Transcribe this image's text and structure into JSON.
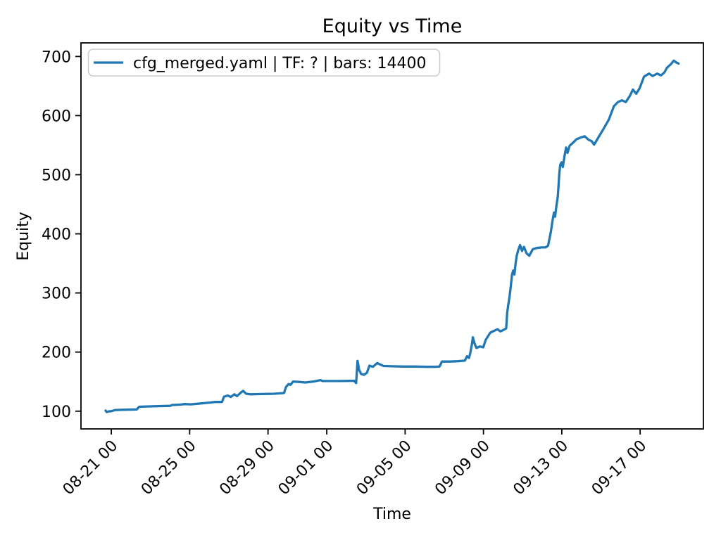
{
  "colors": {
    "line": "#1f77b4",
    "legend_border": "#cccccc",
    "text": "#000000",
    "background": "#ffffff"
  },
  "chart_data": {
    "type": "line",
    "title": "Equity vs Time",
    "xlabel": "Time",
    "ylabel": "Equity",
    "legend": [
      "cfg_merged.yaml | TF: ? | bars: 14400"
    ],
    "legend_position": "upper left",
    "grid": false,
    "x_unit": "days relative to 08-21 00:00 (labels are month-day hour)",
    "xlim": [
      -1.55,
      30.23
    ],
    "ylim": [
      70,
      723
    ],
    "x_ticks": [
      {
        "pos": 0,
        "label": "08-21 00"
      },
      {
        "pos": 4,
        "label": "08-25 00"
      },
      {
        "pos": 8,
        "label": "08-29 00"
      },
      {
        "pos": 11,
        "label": "09-01 00"
      },
      {
        "pos": 15,
        "label": "09-05 00"
      },
      {
        "pos": 19,
        "label": "09-09 00"
      },
      {
        "pos": 23,
        "label": "09-13 00"
      },
      {
        "pos": 27,
        "label": "09-17 00"
      }
    ],
    "y_ticks": [
      {
        "pos": 100,
        "label": "100"
      },
      {
        "pos": 200,
        "label": "200"
      },
      {
        "pos": 300,
        "label": "300"
      },
      {
        "pos": 400,
        "label": "400"
      },
      {
        "pos": 500,
        "label": "500"
      },
      {
        "pos": 600,
        "label": "600"
      },
      {
        "pos": 700,
        "label": "700"
      }
    ],
    "series": [
      {
        "name": "cfg_merged.yaml | TF: ? | bars: 14400",
        "color": "#1f77b4",
        "points": [
          [
            -0.29,
            101
          ],
          [
            -0.24,
            98.5
          ],
          [
            -0.15,
            99.5
          ],
          [
            0,
            100
          ],
          [
            0.2,
            102
          ],
          [
            0.7,
            102.5
          ],
          [
            1.3,
            103
          ],
          [
            1.42,
            107.5
          ],
          [
            1.8,
            108
          ],
          [
            2.4,
            108.5
          ],
          [
            3.0,
            109
          ],
          [
            3.1,
            110.5
          ],
          [
            3.5,
            111
          ],
          [
            3.75,
            112
          ],
          [
            4.05,
            111.5
          ],
          [
            4.55,
            113
          ],
          [
            5.0,
            114.5
          ],
          [
            5.3,
            115.5
          ],
          [
            5.65,
            115.5
          ],
          [
            5.75,
            124.5
          ],
          [
            5.95,
            126.5
          ],
          [
            6.1,
            124
          ],
          [
            6.28,
            128.5
          ],
          [
            6.42,
            125.5
          ],
          [
            6.6,
            131
          ],
          [
            6.73,
            134.5
          ],
          [
            6.88,
            129.5
          ],
          [
            7.1,
            128.5
          ],
          [
            7.7,
            129
          ],
          [
            8.3,
            129.5
          ],
          [
            8.75,
            130.5
          ],
          [
            8.82,
            131
          ],
          [
            8.92,
            141
          ],
          [
            9.05,
            146
          ],
          [
            9.15,
            144.5
          ],
          [
            9.28,
            150
          ],
          [
            9.6,
            149.5
          ],
          [
            9.9,
            148.5
          ],
          [
            10.3,
            150
          ],
          [
            10.68,
            152.5
          ],
          [
            10.78,
            151
          ],
          [
            11.2,
            151
          ],
          [
            11.7,
            151
          ],
          [
            12.1,
            151.2
          ],
          [
            12.4,
            151.5
          ],
          [
            12.5,
            147.5
          ],
          [
            12.57,
            185
          ],
          [
            12.65,
            170
          ],
          [
            12.75,
            163
          ],
          [
            12.9,
            161.5
          ],
          [
            13.05,
            165
          ],
          [
            13.18,
            177
          ],
          [
            13.35,
            175
          ],
          [
            13.58,
            181.5
          ],
          [
            13.72,
            179
          ],
          [
            13.9,
            176.5
          ],
          [
            14.3,
            176
          ],
          [
            14.9,
            175.5
          ],
          [
            15.5,
            175.5
          ],
          [
            16.1,
            175
          ],
          [
            16.5,
            175
          ],
          [
            16.76,
            175.5
          ],
          [
            16.88,
            184
          ],
          [
            17.3,
            184
          ],
          [
            17.7,
            184.5
          ],
          [
            18.05,
            185.5
          ],
          [
            18.16,
            193
          ],
          [
            18.26,
            190
          ],
          [
            18.32,
            197
          ],
          [
            18.4,
            211
          ],
          [
            18.46,
            225
          ],
          [
            18.54,
            215
          ],
          [
            18.64,
            207
          ],
          [
            18.82,
            209.5
          ],
          [
            18.99,
            208
          ],
          [
            19.12,
            221
          ],
          [
            19.35,
            233
          ],
          [
            19.55,
            236
          ],
          [
            19.72,
            238.5
          ],
          [
            19.87,
            235
          ],
          [
            20.02,
            237.5
          ],
          [
            20.16,
            240
          ],
          [
            20.21,
            266
          ],
          [
            20.27,
            281
          ],
          [
            20.33,
            293
          ],
          [
            20.4,
            313
          ],
          [
            20.46,
            331
          ],
          [
            20.52,
            338
          ],
          [
            20.58,
            331
          ],
          [
            20.64,
            349
          ],
          [
            20.7,
            363
          ],
          [
            20.77,
            372
          ],
          [
            20.87,
            381
          ],
          [
            20.97,
            371
          ],
          [
            21.07,
            378
          ],
          [
            21.2,
            367
          ],
          [
            21.34,
            363
          ],
          [
            21.52,
            374
          ],
          [
            21.72,
            376
          ],
          [
            21.97,
            377
          ],
          [
            22.17,
            377
          ],
          [
            22.3,
            380
          ],
          [
            22.44,
            403
          ],
          [
            22.54,
            425
          ],
          [
            22.6,
            436
          ],
          [
            22.66,
            429
          ],
          [
            22.72,
            446
          ],
          [
            22.8,
            464
          ],
          [
            22.87,
            501
          ],
          [
            22.92,
            517
          ],
          [
            22.99,
            521
          ],
          [
            23.05,
            513
          ],
          [
            23.14,
            532
          ],
          [
            23.22,
            546
          ],
          [
            23.29,
            537
          ],
          [
            23.4,
            549
          ],
          [
            23.57,
            554
          ],
          [
            23.75,
            560
          ],
          [
            23.97,
            563
          ],
          [
            24.17,
            565
          ],
          [
            24.37,
            559
          ],
          [
            24.52,
            557
          ],
          [
            24.65,
            551
          ],
          [
            24.85,
            562
          ],
          [
            25.12,
            577
          ],
          [
            25.4,
            593
          ],
          [
            25.66,
            616
          ],
          [
            25.87,
            623
          ],
          [
            26.07,
            626
          ],
          [
            26.27,
            623
          ],
          [
            26.47,
            633
          ],
          [
            26.63,
            644
          ],
          [
            26.8,
            637
          ],
          [
            26.97,
            646
          ],
          [
            27.2,
            666
          ],
          [
            27.46,
            671
          ],
          [
            27.64,
            667
          ],
          [
            27.87,
            671
          ],
          [
            28.07,
            668
          ],
          [
            28.24,
            673
          ],
          [
            28.37,
            681
          ],
          [
            28.57,
            687
          ],
          [
            28.72,
            693
          ],
          [
            28.84,
            690
          ],
          [
            28.96,
            688
          ]
        ]
      }
    ]
  }
}
